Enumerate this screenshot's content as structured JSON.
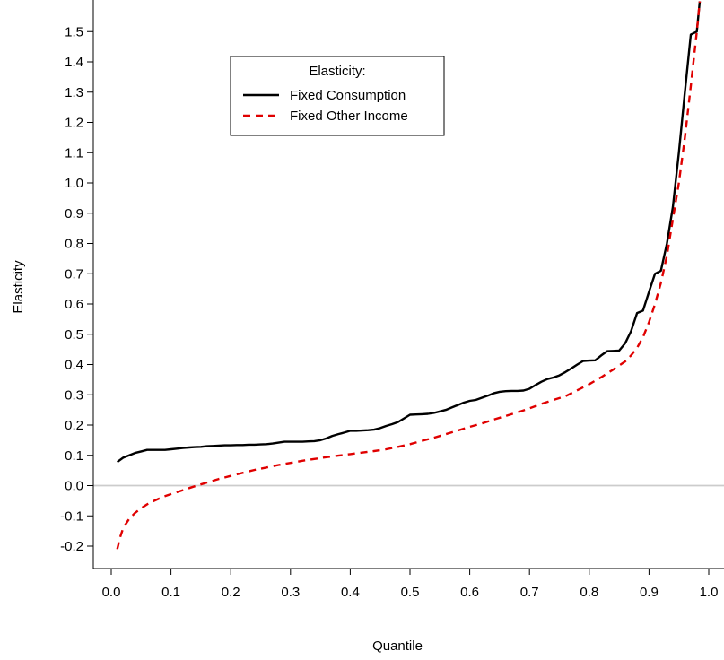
{
  "chart_data": {
    "type": "line",
    "title": "",
    "xlabel": "Quantile",
    "ylabel": "Elasticity",
    "xlim": [
      0.0,
      1.0
    ],
    "ylim": [
      -0.2,
      1.55
    ],
    "x_ticks": [
      0.0,
      0.1,
      0.2,
      0.3,
      0.4,
      0.5,
      0.6,
      0.7,
      0.8,
      0.9,
      1.0
    ],
    "x_tick_labels": [
      "0.0",
      "0.1",
      "0.2",
      "0.3",
      "0.4",
      "0.5",
      "0.6",
      "0.7",
      "0.8",
      "0.9",
      "1.0"
    ],
    "y_ticks": [
      -0.2,
      -0.1,
      0.0,
      0.1,
      0.2,
      0.3,
      0.4,
      0.5,
      0.6,
      0.7,
      0.8,
      0.9,
      1.0,
      1.1,
      1.2,
      1.3,
      1.4,
      1.5
    ],
    "y_tick_labels": [
      "-0.2",
      "-0.1",
      "0.0",
      "0.1",
      "0.2",
      "0.3",
      "0.4",
      "0.5",
      "0.6",
      "0.7",
      "0.8",
      "0.9",
      "1.0",
      "1.1",
      "1.2",
      "1.3",
      "1.4",
      "1.5"
    ],
    "reference_line": {
      "y": 0.0,
      "color": "#cccccc"
    },
    "grid": false,
    "legend": {
      "title": "Elasticity:",
      "placement": "top-left",
      "entries": [
        "Fixed Consumption",
        "Fixed Other Income"
      ]
    },
    "series": [
      {
        "name": "Fixed Consumption",
        "color": "#000000",
        "style": "solid",
        "x": [
          0.01,
          0.02,
          0.03,
          0.04,
          0.05,
          0.06,
          0.07,
          0.08,
          0.09,
          0.1,
          0.11,
          0.12,
          0.13,
          0.14,
          0.15,
          0.16,
          0.17,
          0.18,
          0.19,
          0.2,
          0.21,
          0.22,
          0.23,
          0.24,
          0.25,
          0.26,
          0.27,
          0.28,
          0.29,
          0.3,
          0.31,
          0.32,
          0.33,
          0.34,
          0.35,
          0.36,
          0.37,
          0.38,
          0.39,
          0.4,
          0.41,
          0.42,
          0.43,
          0.44,
          0.45,
          0.46,
          0.47,
          0.48,
          0.49,
          0.5,
          0.51,
          0.52,
          0.53,
          0.54,
          0.55,
          0.56,
          0.57,
          0.58,
          0.59,
          0.6,
          0.61,
          0.62,
          0.63,
          0.64,
          0.65,
          0.66,
          0.67,
          0.68,
          0.69,
          0.7,
          0.71,
          0.72,
          0.73,
          0.74,
          0.75,
          0.76,
          0.77,
          0.78,
          0.79,
          0.8,
          0.81,
          0.82,
          0.83,
          0.84,
          0.85,
          0.86,
          0.87,
          0.88,
          0.89,
          0.9,
          0.91,
          0.92,
          0.93,
          0.94,
          0.95,
          0.96,
          0.97,
          0.98,
          0.985
        ],
        "y": [
          0.078,
          0.092,
          0.1,
          0.108,
          0.113,
          0.118,
          0.118,
          0.118,
          0.118,
          0.12,
          0.122,
          0.124,
          0.126,
          0.127,
          0.128,
          0.13,
          0.131,
          0.132,
          0.133,
          0.133,
          0.134,
          0.134,
          0.135,
          0.135,
          0.136,
          0.137,
          0.139,
          0.142,
          0.145,
          0.145,
          0.145,
          0.145,
          0.146,
          0.147,
          0.15,
          0.156,
          0.164,
          0.17,
          0.175,
          0.181,
          0.181,
          0.182,
          0.183,
          0.185,
          0.19,
          0.197,
          0.203,
          0.21,
          0.222,
          0.234,
          0.235,
          0.236,
          0.237,
          0.24,
          0.245,
          0.25,
          0.258,
          0.266,
          0.274,
          0.28,
          0.283,
          0.29,
          0.297,
          0.305,
          0.31,
          0.312,
          0.313,
          0.313,
          0.314,
          0.32,
          0.332,
          0.343,
          0.352,
          0.357,
          0.364,
          0.375,
          0.387,
          0.4,
          0.412,
          0.413,
          0.414,
          0.43,
          0.444,
          0.445,
          0.446,
          0.47,
          0.51,
          0.57,
          0.578,
          0.64,
          0.7,
          0.71,
          0.8,
          0.92,
          1.1,
          1.3,
          1.49,
          1.5,
          1.6
        ]
      },
      {
        "name": "Fixed Other Income",
        "color": "#e00000",
        "style": "dashed",
        "x": [
          0.01,
          0.015,
          0.02,
          0.03,
          0.04,
          0.05,
          0.06,
          0.07,
          0.08,
          0.09,
          0.1,
          0.12,
          0.14,
          0.16,
          0.18,
          0.2,
          0.22,
          0.24,
          0.26,
          0.28,
          0.3,
          0.32,
          0.34,
          0.36,
          0.38,
          0.4,
          0.42,
          0.44,
          0.46,
          0.48,
          0.5,
          0.52,
          0.54,
          0.56,
          0.58,
          0.6,
          0.62,
          0.64,
          0.66,
          0.68,
          0.7,
          0.72,
          0.74,
          0.76,
          0.78,
          0.8,
          0.82,
          0.84,
          0.86,
          0.87,
          0.88,
          0.89,
          0.9,
          0.91,
          0.92,
          0.93,
          0.94,
          0.95,
          0.96,
          0.97,
          0.98,
          0.985
        ],
        "y": [
          -0.21,
          -0.17,
          -0.14,
          -0.11,
          -0.09,
          -0.075,
          -0.062,
          -0.052,
          -0.043,
          -0.035,
          -0.028,
          -0.015,
          -0.002,
          0.01,
          0.022,
          0.032,
          0.042,
          0.052,
          0.06,
          0.068,
          0.075,
          0.082,
          0.088,
          0.094,
          0.099,
          0.104,
          0.109,
          0.114,
          0.12,
          0.128,
          0.137,
          0.148,
          0.158,
          0.17,
          0.182,
          0.194,
          0.205,
          0.218,
          0.23,
          0.242,
          0.255,
          0.27,
          0.283,
          0.295,
          0.315,
          0.335,
          0.358,
          0.383,
          0.41,
          0.43,
          0.455,
          0.49,
          0.54,
          0.6,
          0.67,
          0.76,
          0.88,
          1.0,
          1.15,
          1.32,
          1.5,
          1.6
        ]
      }
    ]
  }
}
